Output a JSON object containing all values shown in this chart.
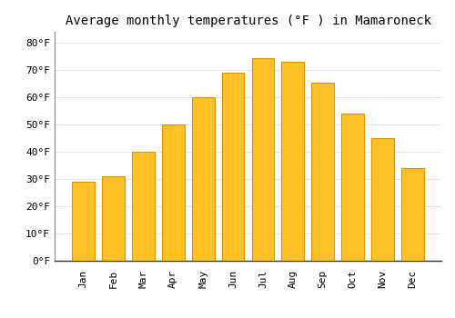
{
  "title": "Average monthly temperatures (°F ) in Mamaroneck",
  "months": [
    "Jan",
    "Feb",
    "Mar",
    "Apr",
    "May",
    "Jun",
    "Jul",
    "Aug",
    "Sep",
    "Oct",
    "Nov",
    "Dec"
  ],
  "values": [
    29,
    31,
    40,
    50,
    60,
    69,
    74.5,
    73,
    65.5,
    54,
    45,
    34
  ],
  "bar_color": "#FFC125",
  "bar_edge_color": "#E89000",
  "background_color": "#FFFFFF",
  "grid_color": "#DDDDDD",
  "ylim": [
    0,
    84
  ],
  "yticks": [
    0,
    10,
    20,
    30,
    40,
    50,
    60,
    70,
    80
  ],
  "title_fontsize": 10,
  "tick_fontsize": 8,
  "font_family": "monospace"
}
